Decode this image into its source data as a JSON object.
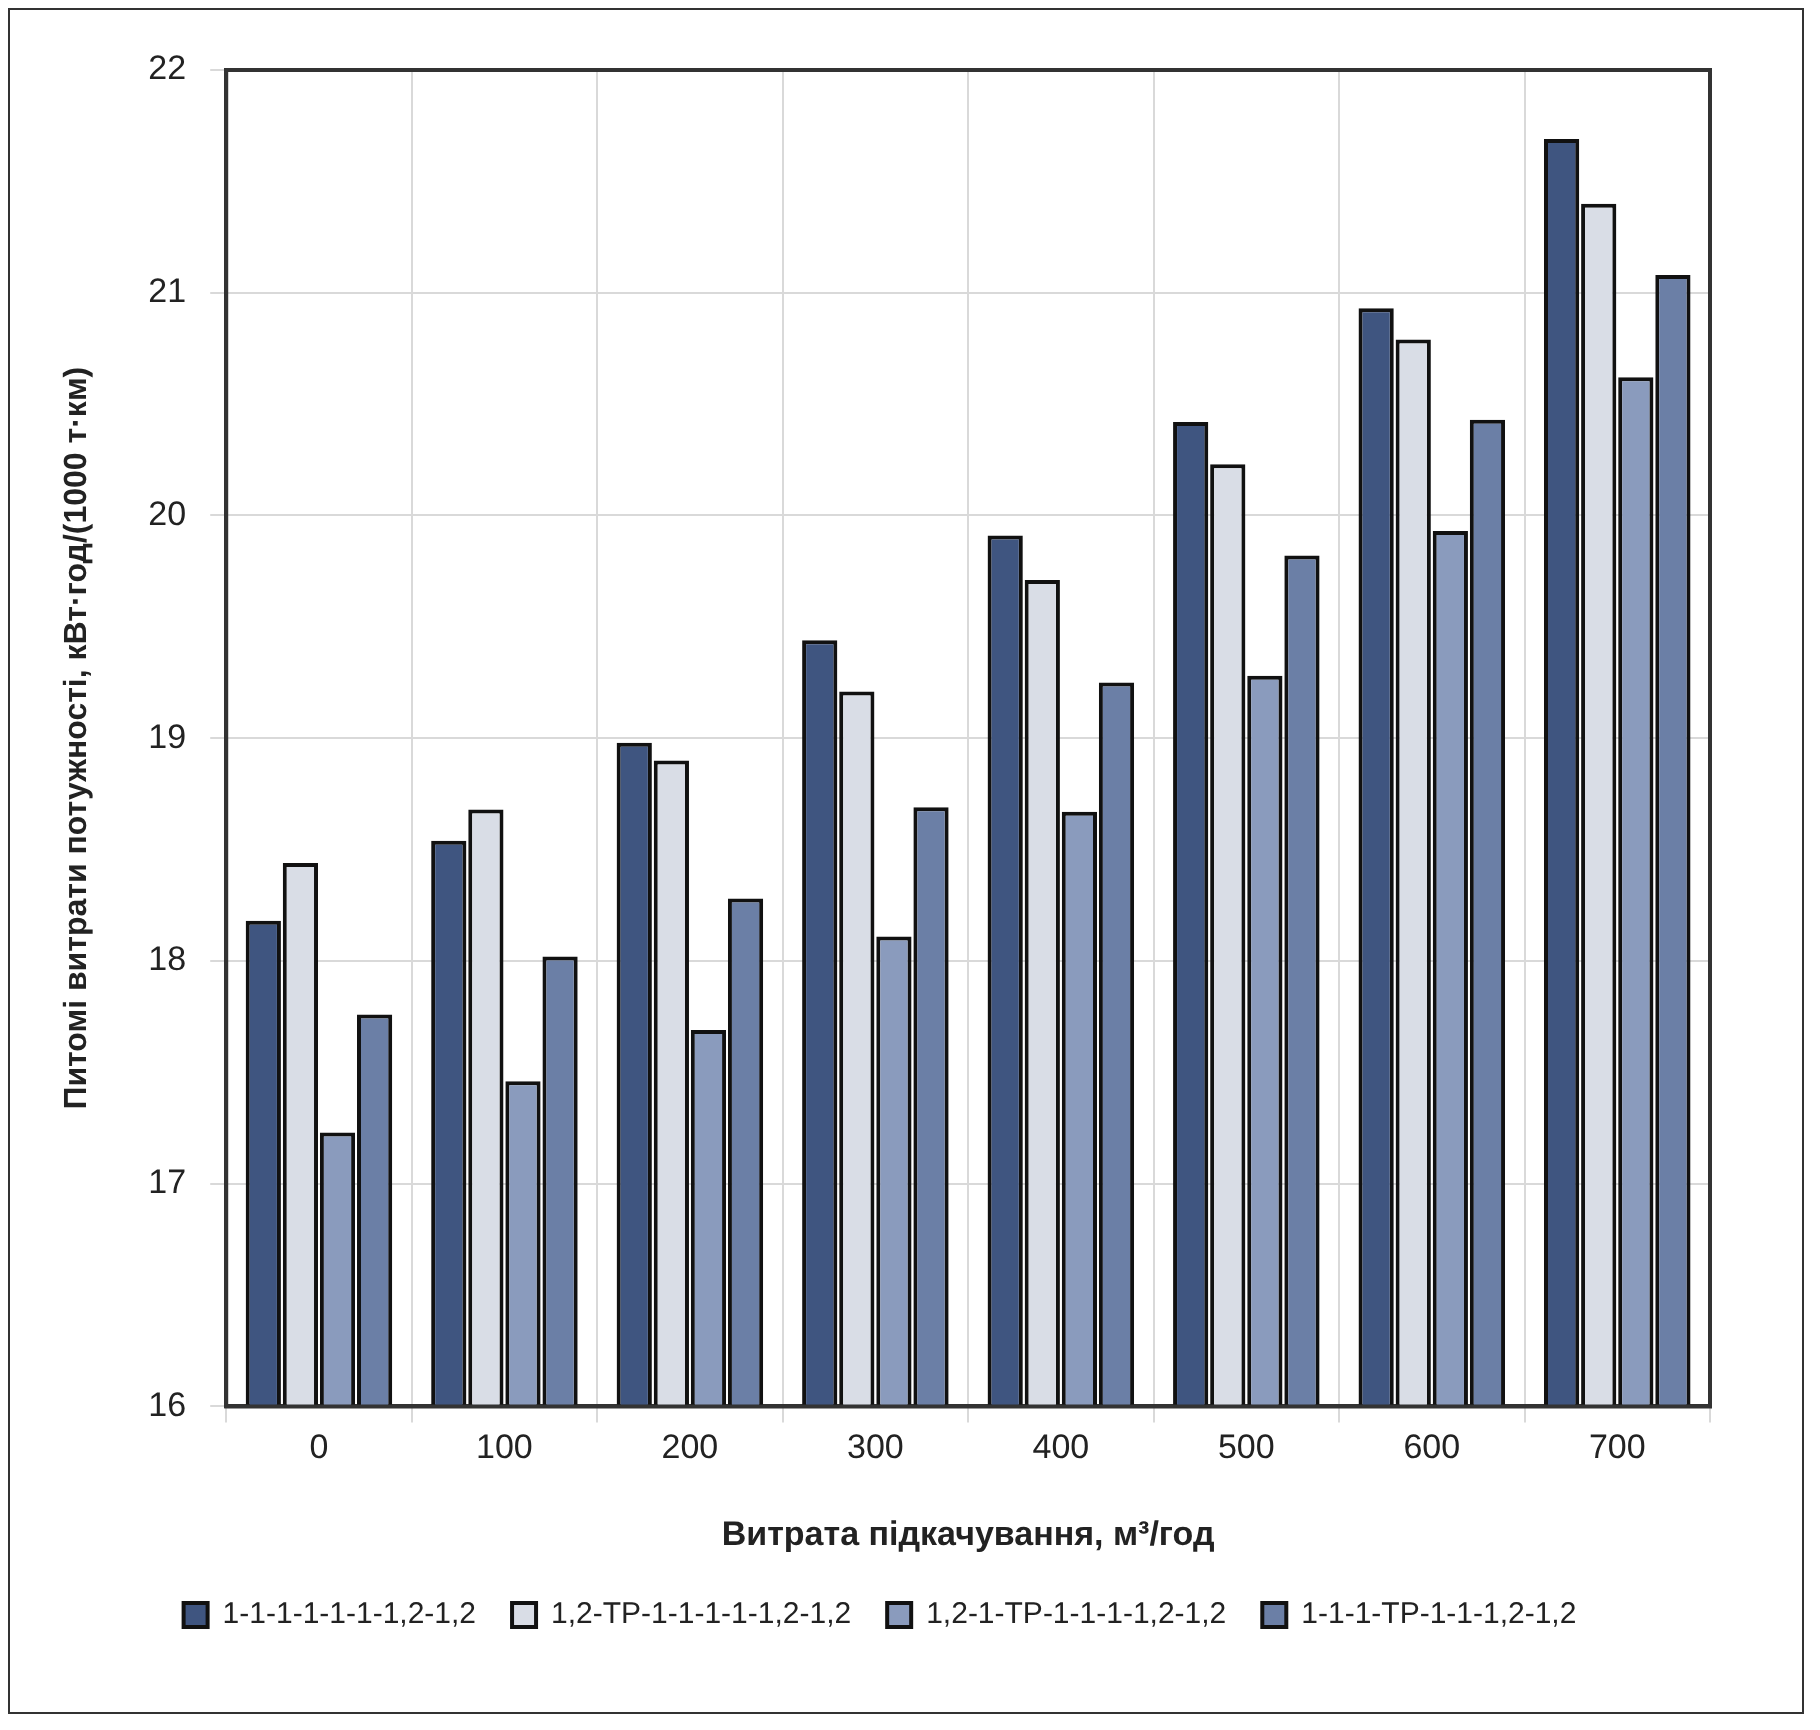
{
  "chart_data": {
    "type": "bar",
    "xlabel": "Витрата підкачування, м³/год",
    "ylabel": "Питомі витрати потужності, кВт·год/(1000 т·км)",
    "categories": [
      "0",
      "100",
      "200",
      "300",
      "400",
      "500",
      "600",
      "700"
    ],
    "series": [
      {
        "name": "1-1-1-1-1-1-1,2-1,2",
        "color": "#3f5580",
        "values": [
          18.18,
          18.54,
          18.98,
          19.44,
          19.91,
          20.42,
          20.93,
          21.69
        ]
      },
      {
        "name": "1,2-TP-1-1-1-1-1,2-1,2",
        "color": "#d9dde6",
        "values": [
          18.44,
          18.68,
          18.9,
          19.21,
          19.71,
          20.23,
          20.79,
          21.4
        ]
      },
      {
        "name": "1,2-1-TP-1-1-1-1,2-1,2",
        "color": "#8a9bbd",
        "values": [
          17.23,
          17.46,
          17.69,
          18.11,
          18.67,
          19.28,
          19.93,
          20.62
        ]
      },
      {
        "name": "1-1-1-TP-1-1-1,2-1,2",
        "color": "#6b7fa6",
        "values": [
          17.76,
          18.02,
          18.28,
          18.69,
          19.25,
          19.82,
          20.43,
          21.08
        ]
      }
    ],
    "ylim": [
      16,
      22
    ],
    "yticks": [
      16,
      17,
      18,
      19,
      20,
      21,
      22
    ],
    "grid": true,
    "legend": "bottom"
  }
}
